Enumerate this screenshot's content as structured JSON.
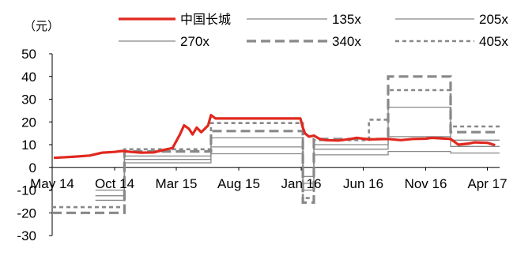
{
  "chart_data": {
    "type": "line",
    "y_unit_label": "（元）",
    "ylim": [
      -30,
      50
    ],
    "y_ticks": [
      50,
      40,
      30,
      20,
      10,
      0,
      -10,
      -20,
      -30
    ],
    "x_tick_labels": [
      "May 14",
      "Oct 14",
      "Mar 15",
      "Aug 15",
      "Jan 16",
      "Jun 16",
      "Nov 16",
      "Apr 17"
    ],
    "x_range_months": [
      "2014-05",
      "2017-05"
    ],
    "legend_placement": "top",
    "series": [
      {
        "name": "中国长城",
        "color": "#E0281E",
        "style": "solid-thick",
        "points": [
          [
            "2014-05-05",
            4.2
          ],
          [
            "2014-06-05",
            4.5
          ],
          [
            "2014-07-01",
            4.8
          ],
          [
            "2014-08-01",
            5.2
          ],
          [
            "2014-09-01",
            6.5
          ],
          [
            "2014-10-01",
            6.8
          ],
          [
            "2014-10-20",
            7.2
          ],
          [
            "2014-11-10",
            6.8
          ],
          [
            "2014-12-05",
            6.5
          ],
          [
            "2015-01-05",
            6.6
          ],
          [
            "2015-02-01",
            7.8
          ],
          [
            "2015-02-20",
            8.5
          ],
          [
            "2015-03-10",
            14.5
          ],
          [
            "2015-03-20",
            18.5
          ],
          [
            "2015-04-01",
            17.0
          ],
          [
            "2015-04-10",
            14.5
          ],
          [
            "2015-04-20",
            17.5
          ],
          [
            "2015-05-01",
            15.5
          ],
          [
            "2015-05-10",
            17.0
          ],
          [
            "2015-05-18",
            18.5
          ],
          [
            "2015-05-25",
            23.0
          ],
          [
            "2015-06-05",
            21.5
          ],
          [
            "2015-07-01",
            21.5
          ],
          [
            "2015-12-30",
            21.5
          ],
          [
            "2016-01-05",
            17.5
          ],
          [
            "2016-01-10",
            15.0
          ],
          [
            "2016-01-20",
            13.5
          ],
          [
            "2016-02-01",
            14.0
          ],
          [
            "2016-02-15",
            12.5
          ],
          [
            "2016-03-01",
            12.0
          ],
          [
            "2016-04-01",
            11.8
          ],
          [
            "2016-05-01",
            12.5
          ],
          [
            "2016-05-15",
            13.0
          ],
          [
            "2016-06-15",
            12.3
          ],
          [
            "2016-08-01",
            12.5
          ],
          [
            "2016-09-01",
            12.0
          ],
          [
            "2016-10-01",
            12.5
          ],
          [
            "2016-11-01",
            12.6
          ],
          [
            "2016-11-15",
            13.0
          ],
          [
            "2016-12-01",
            12.8
          ],
          [
            "2017-01-01",
            12.5
          ],
          [
            "2017-01-20",
            10.0
          ],
          [
            "2017-02-15",
            10.5
          ],
          [
            "2017-03-01",
            11.0
          ],
          [
            "2017-04-01",
            10.8
          ],
          [
            "2017-04-20",
            9.8
          ]
        ]
      },
      {
        "name": "135x",
        "color": "#888888",
        "style": "solid-thin",
        "steps": [
          [
            "2014-05-01",
            null
          ],
          [
            "2014-08-15",
            -10
          ],
          [
            "2014-10-25",
            2
          ],
          [
            "2015-05-25",
            6
          ],
          [
            "2016-01-05",
            -4
          ],
          [
            "2016-02-01",
            5.5
          ],
          [
            "2016-08-01",
            7.0
          ],
          [
            "2017-01-01",
            6.3
          ],
          [
            "2017-05-01",
            6.3
          ]
        ]
      },
      {
        "name": "205x",
        "color": "#888888",
        "style": "solid-thin",
        "steps": [
          [
            "2014-05-01",
            null
          ],
          [
            "2014-08-15",
            -12.5
          ],
          [
            "2014-10-25",
            3.5
          ],
          [
            "2015-05-25",
            9.0
          ],
          [
            "2016-01-05",
            -7
          ],
          [
            "2016-02-01",
            8.0
          ],
          [
            "2016-08-01",
            13.5
          ],
          [
            "2017-01-01",
            9.2
          ],
          [
            "2017-05-01",
            9.2
          ]
        ]
      },
      {
        "name": "270x",
        "color": "#888888",
        "style": "solid-thin",
        "steps": [
          [
            "2014-05-01",
            null
          ],
          [
            "2014-08-15",
            -14.5
          ],
          [
            "2014-10-25",
            5.0
          ],
          [
            "2015-05-25",
            13.0
          ],
          [
            "2016-01-05",
            -10
          ],
          [
            "2016-02-01",
            10.0
          ],
          [
            "2016-08-01",
            26.5
          ],
          [
            "2017-01-01",
            12.0
          ],
          [
            "2017-05-01",
            12.0
          ]
        ]
      },
      {
        "name": "340x",
        "color": "#888888",
        "style": "dash-thick",
        "steps": [
          [
            "2014-05-01",
            -20.0
          ],
          [
            "2014-10-25",
            7.0
          ],
          [
            "2015-05-25",
            16.0
          ],
          [
            "2016-01-05",
            -15.5
          ],
          [
            "2016-02-01",
            12.5
          ],
          [
            "2016-08-01",
            40.0
          ],
          [
            "2017-01-01",
            15.5
          ],
          [
            "2017-05-01",
            15.5
          ]
        ]
      },
      {
        "name": "405x",
        "color": "#888888",
        "style": "dash-medium",
        "steps": [
          [
            "2014-05-01",
            -17.5
          ],
          [
            "2014-10-25",
            8.0
          ],
          [
            "2015-05-25",
            19.5
          ],
          [
            "2016-01-05",
            -13.5
          ],
          [
            "2016-02-01",
            12.0
          ],
          [
            "2016-06-15",
            21.0
          ],
          [
            "2016-08-01",
            34.0
          ],
          [
            "2017-01-01",
            18.0
          ],
          [
            "2017-05-01",
            18.0
          ]
        ]
      }
    ]
  }
}
